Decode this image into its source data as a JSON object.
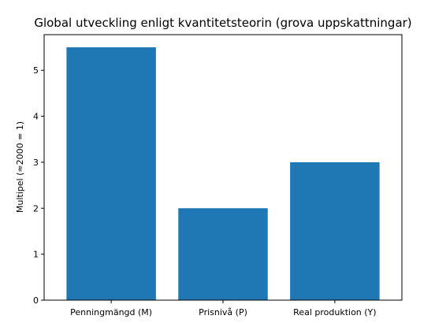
{
  "chart_data": {
    "type": "bar",
    "title": "Global utveckling enligt kvantitetsteorin (grova uppskattningar)",
    "xlabel": "",
    "ylabel": "Multipel (≈2000 = 1)",
    "categories": [
      "Penningmängd (M)",
      "Prisnivå (P)",
      "Real produktion (Y)"
    ],
    "values": [
      5.5,
      2,
      3
    ],
    "ylim": [
      0,
      5.775
    ],
    "yticks": [
      0,
      1,
      2,
      3,
      4,
      5
    ],
    "bar_color": "#1f77b4",
    "grid": false,
    "legend": "none"
  }
}
